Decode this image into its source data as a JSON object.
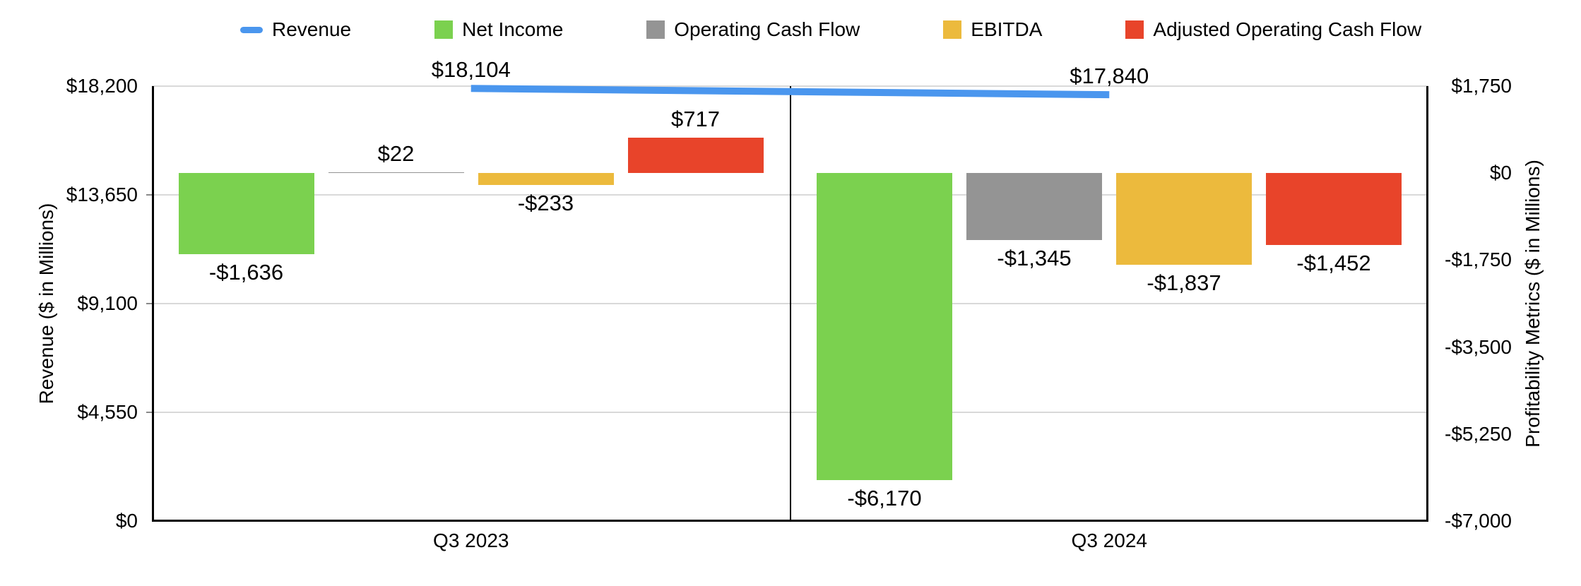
{
  "chart_data": {
    "type": "combo",
    "categories": [
      "Q3 2023",
      "Q3 2024"
    ],
    "series": [
      {
        "name": "Revenue",
        "type": "line",
        "axis": "left",
        "color": "#4a96ee",
        "values": [
          18104,
          17840
        ],
        "labels": [
          "$18,104",
          "$17,840"
        ]
      },
      {
        "name": "Net Income",
        "type": "bar",
        "axis": "right",
        "color": "#7bd14f",
        "values": [
          -1636,
          -6170
        ],
        "labels": [
          "-$1,636",
          "-$6,170"
        ]
      },
      {
        "name": "Operating Cash Flow",
        "type": "bar",
        "axis": "right",
        "color": "#949494",
        "values": [
          22,
          -1345
        ],
        "labels": [
          "$22",
          "-$1,345"
        ]
      },
      {
        "name": "EBITDA",
        "type": "bar",
        "axis": "right",
        "color": "#ecba3d",
        "values": [
          -233,
          -1837
        ],
        "labels": [
          "-$233",
          "-$1,837"
        ]
      },
      {
        "name": "Adjusted Operating Cash Flow",
        "type": "bar",
        "axis": "right",
        "color": "#e8442a",
        "values": [
          717,
          -1452
        ],
        "labels": [
          "$717",
          "-$1,452"
        ]
      }
    ],
    "left_axis": {
      "title": "Revenue ($ in Millions)",
      "min": 0,
      "max": 18200,
      "tick_values": [
        18200,
        13650,
        9100,
        4550,
        0
      ],
      "tick_labels": [
        "$18,200",
        "$13,650",
        "$9,100",
        "$4,550",
        "$0"
      ]
    },
    "right_axis": {
      "title": "Profitability Metrics ($ in Millions)",
      "min": -7000,
      "max": 1750,
      "tick_values": [
        1750,
        0,
        -1750,
        -3500,
        -5250,
        -7000
      ],
      "tick_labels": [
        "$1,750",
        "$0",
        "-$1,750",
        "-$3,500",
        "-$5,250",
        "-$7,000"
      ]
    },
    "legend_position": "top",
    "grid": "horizontal"
  }
}
